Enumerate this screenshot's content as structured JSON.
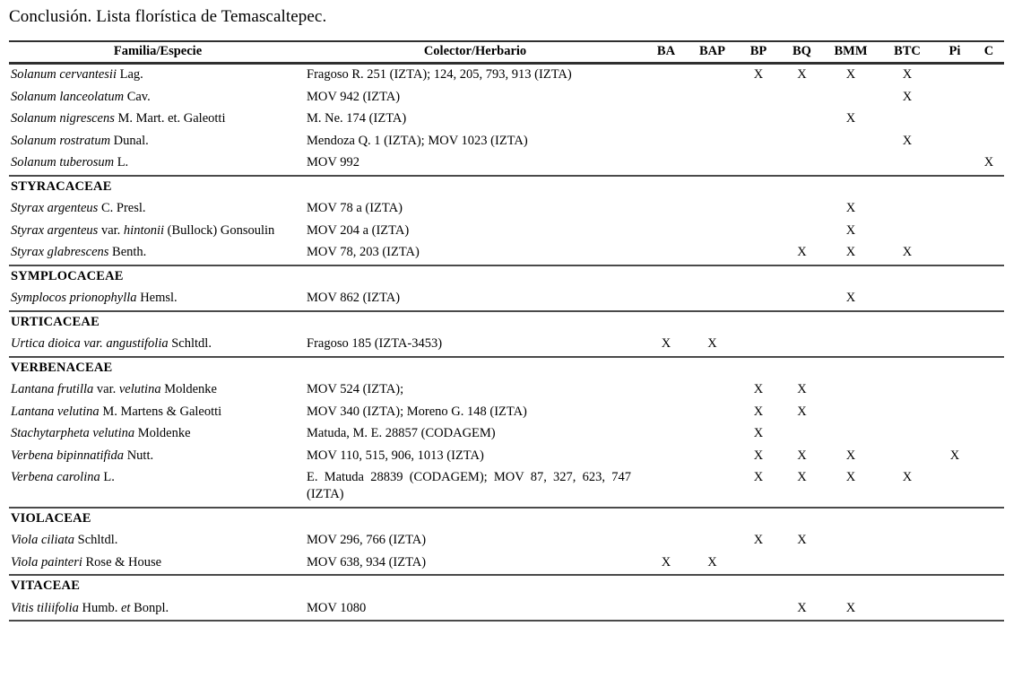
{
  "page": {
    "title": "Conclusión. Lista florística de Temascaltepec."
  },
  "colors": {
    "background": "#ffffff",
    "text": "#000000",
    "rule_dark": "#2f2f2f",
    "rule_section": "#4a4a4a"
  },
  "table": {
    "mark": "X",
    "headers": [
      "Familia/Especie",
      "Colector/Herbario",
      "BA",
      "BAP",
      "BP",
      "BQ",
      "BMM",
      "BTC",
      "Pi",
      "C"
    ],
    "mark_columns": [
      "BA",
      "BAP",
      "BP",
      "BQ",
      "BMM",
      "BTC",
      "Pi",
      "C"
    ],
    "sections": [
      {
        "family": null,
        "rows": [
          {
            "species": [
              {
                "text": "Solanum cervantesii",
                "italic": true
              },
              {
                "text": " Lag.",
                "italic": false
              }
            ],
            "collector": "Fragoso R. 251 (IZTA); 124, 205, 793, 913 (IZTA)",
            "marks": [
              "BP",
              "BQ",
              "BMM",
              "BTC"
            ]
          },
          {
            "species": [
              {
                "text": "Solanum lanceolatum",
                "italic": true
              },
              {
                "text": " Cav.",
                "italic": false
              }
            ],
            "collector": "MOV 942 (IZTA)",
            "marks": [
              "BTC"
            ]
          },
          {
            "species": [
              {
                "text": "Solanum nigrescens",
                "italic": true
              },
              {
                "text": " M. Mart. et. Galeotti",
                "italic": false
              }
            ],
            "collector": "M. Ne. 174 (IZTA)",
            "marks": [
              "BMM"
            ]
          },
          {
            "species": [
              {
                "text": "Solanum rostratum",
                "italic": true
              },
              {
                "text": " Dunal.",
                "italic": false
              }
            ],
            "collector": "Mendoza Q. 1 (IZTA); MOV 1023 (IZTA)",
            "marks": [
              "BTC"
            ]
          },
          {
            "species": [
              {
                "text": "Solanum tuberosum",
                "italic": true
              },
              {
                "text": " L.",
                "italic": false
              }
            ],
            "collector": "MOV 992",
            "marks": [
              "C"
            ]
          }
        ]
      },
      {
        "family": "STYRACACEAE",
        "rows": [
          {
            "species": [
              {
                "text": "Styrax argenteus",
                "italic": true
              },
              {
                "text": " C. Presl.",
                "italic": false
              }
            ],
            "collector": "MOV 78 a (IZTA)",
            "marks": [
              "BMM"
            ]
          },
          {
            "species": [
              {
                "text": "Styrax argenteus",
                "italic": true
              },
              {
                "text": " var. ",
                "italic": false
              },
              {
                "text": "hintonii",
                "italic": true
              },
              {
                "text": " (Bullock) Gonsoulin",
                "italic": false
              }
            ],
            "collector": "MOV 204 a (IZTA)",
            "marks": [
              "BMM"
            ]
          },
          {
            "species": [
              {
                "text": "Styrax glabrescens",
                "italic": true
              },
              {
                "text": " Benth.",
                "italic": false
              }
            ],
            "collector": "MOV 78, 203 (IZTA)",
            "marks": [
              "BQ",
              "BMM",
              "BTC"
            ]
          }
        ]
      },
      {
        "family": "SYMPLOCACEAE",
        "rows": [
          {
            "species": [
              {
                "text": "Symplocos prionophylla",
                "italic": true
              },
              {
                "text": " Hemsl.",
                "italic": false
              }
            ],
            "collector": "MOV 862 (IZTA)",
            "marks": [
              "BMM"
            ]
          }
        ]
      },
      {
        "family": "URTICACEAE",
        "rows": [
          {
            "species": [
              {
                "text": "Urtica dioica var. angustifolia",
                "italic": true
              },
              {
                "text": " Schltdl.",
                "italic": false
              }
            ],
            "collector": "Fragoso 185 (IZTA-3453)",
            "marks": [
              "BA",
              "BAP"
            ]
          }
        ]
      },
      {
        "family": "VERBENACEAE",
        "rows": [
          {
            "species": [
              {
                "text": "Lantana frutilla",
                "italic": true
              },
              {
                "text": " var. ",
                "italic": false
              },
              {
                "text": "velutina",
                "italic": true
              },
              {
                "text": " Moldenke",
                "italic": false
              }
            ],
            "collector": "MOV 524 (IZTA);",
            "marks": [
              "BP",
              "BQ"
            ]
          },
          {
            "species": [
              {
                "text": "Lantana velutina",
                "italic": true
              },
              {
                "text": " M. Martens & Galeotti",
                "italic": false
              }
            ],
            "collector": "MOV 340 (IZTA); Moreno G. 148 (IZTA)",
            "marks": [
              "BP",
              "BQ"
            ]
          },
          {
            "species": [
              {
                "text": "Stachytarpheta velutina",
                "italic": true
              },
              {
                "text": " Moldenke",
                "italic": false
              }
            ],
            "collector": "Matuda, M. E. 28857 (CODAGEM)",
            "marks": [
              "BP"
            ]
          },
          {
            "species": [
              {
                "text": "Verbena bipinnatifida",
                "italic": true
              },
              {
                "text": " Nutt.",
                "italic": false
              }
            ],
            "collector": "MOV 110, 515, 906, 1013 (IZTA)",
            "marks": [
              "BP",
              "BQ",
              "BMM",
              "Pi"
            ]
          },
          {
            "species": [
              {
                "text": "Verbena carolina",
                "italic": true
              },
              {
                "text": " L.",
                "italic": false
              }
            ],
            "collector": "E. Matuda 28839 (CODAGEM); MOV 87, 327, 623, 747 (IZTA)",
            "marks": [
              "BP",
              "BQ",
              "BMM",
              "BTC"
            ]
          }
        ]
      },
      {
        "family": "VIOLACEAE",
        "rows": [
          {
            "species": [
              {
                "text": "Viola ciliata",
                "italic": true
              },
              {
                "text": " Schltdl.",
                "italic": false
              }
            ],
            "collector": "MOV 296, 766 (IZTA)",
            "marks": [
              "BP",
              "BQ"
            ]
          },
          {
            "species": [
              {
                "text": "Viola painteri",
                "italic": true
              },
              {
                "text": " Rose & House",
                "italic": false
              }
            ],
            "collector": "MOV 638, 934 (IZTA)",
            "marks": [
              "BA",
              "BAP"
            ]
          }
        ]
      },
      {
        "family": "VITACEAE",
        "rows": [
          {
            "species": [
              {
                "text": "Vitis tiliifolia",
                "italic": true
              },
              {
                "text": " Humb. ",
                "italic": false
              },
              {
                "text": "et",
                "italic": true
              },
              {
                "text": " Bonpl.",
                "italic": false
              }
            ],
            "collector": "MOV 1080",
            "marks": [
              "BQ",
              "BMM"
            ]
          }
        ]
      }
    ]
  }
}
